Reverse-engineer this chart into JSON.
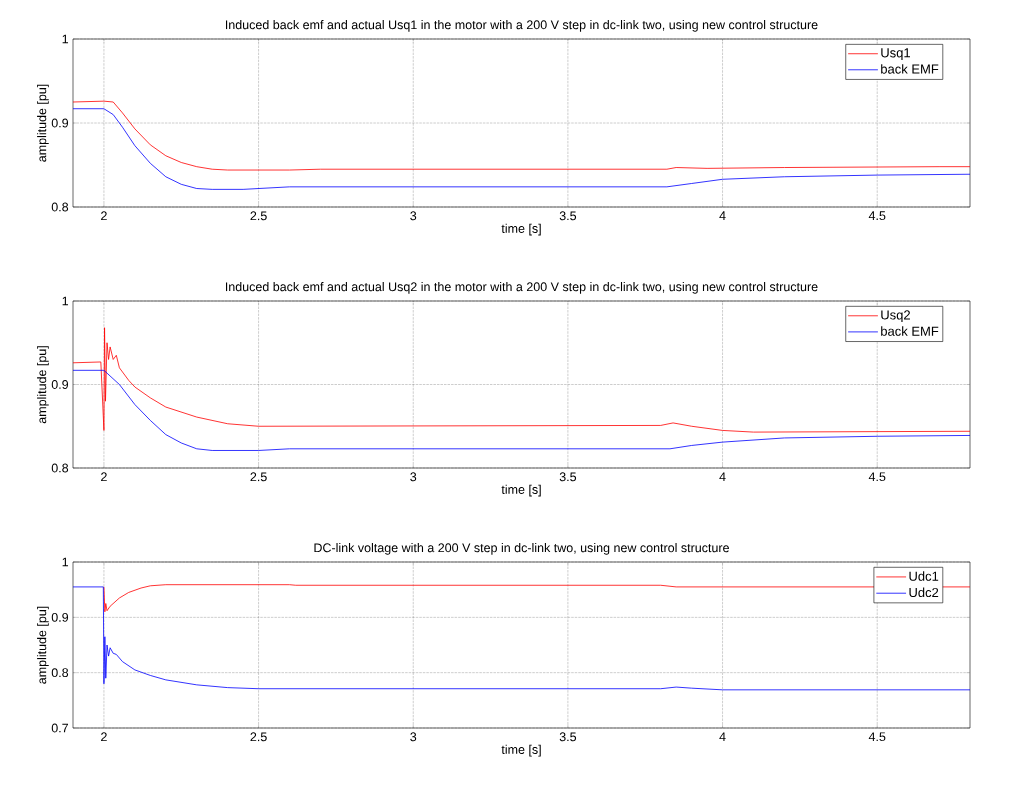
{
  "chart_data": [
    {
      "type": "line",
      "title": "Induced back emf and actual Usq1 in the motor with a 200 V step in dc-link two, using new control structure",
      "xlabel": "time [s]",
      "ylabel": "amplitude [pu]",
      "xlim": [
        1.9,
        4.8
      ],
      "ylim": [
        0.8,
        1
      ],
      "xticks": [
        2,
        2.5,
        3,
        3.5,
        4,
        4.5
      ],
      "yticks": [
        0.8,
        0.9,
        1
      ],
      "grid": true,
      "legend": "top right",
      "series": [
        {
          "name": "Usq1",
          "color": "#ff0000",
          "x": [
            1.9,
            2.0,
            2.03,
            2.06,
            2.1,
            2.15,
            2.2,
            2.25,
            2.3,
            2.35,
            2.4,
            2.6,
            2.7,
            3.82,
            3.85,
            3.95,
            4.2,
            4.7,
            4.8
          ],
          "values": [
            0.925,
            0.926,
            0.925,
            0.912,
            0.893,
            0.874,
            0.861,
            0.853,
            0.848,
            0.845,
            0.844,
            0.844,
            0.845,
            0.845,
            0.847,
            0.846,
            0.847,
            0.848,
            0.848
          ]
        },
        {
          "name": "back EMF",
          "color": "#0000ff",
          "x": [
            1.9,
            2.0,
            2.03,
            2.06,
            2.1,
            2.15,
            2.2,
            2.25,
            2.3,
            2.35,
            2.45,
            2.6,
            3.82,
            3.9,
            4.0,
            4.2,
            4.5,
            4.8
          ],
          "values": [
            0.917,
            0.917,
            0.91,
            0.895,
            0.873,
            0.852,
            0.836,
            0.827,
            0.822,
            0.821,
            0.821,
            0.824,
            0.824,
            0.828,
            0.833,
            0.836,
            0.838,
            0.839
          ]
        }
      ]
    },
    {
      "type": "line",
      "title": "Induced back emf and actual Usq2 in the motor with a 200 V step in dc-link two, using new control structure",
      "xlabel": "time [s]",
      "ylabel": "amplitude [pu]",
      "xlim": [
        1.9,
        4.8
      ],
      "ylim": [
        0.8,
        1
      ],
      "xticks": [
        2,
        2.5,
        3,
        3.5,
        4,
        4.5
      ],
      "yticks": [
        0.8,
        0.9,
        1
      ],
      "grid": true,
      "legend": "top right",
      "series": [
        {
          "name": "Usq2",
          "color": "#ff0000",
          "x": [
            1.9,
            1.99,
            2.0,
            2.002,
            2.005,
            2.01,
            2.015,
            2.02,
            2.03,
            2.04,
            2.05,
            2.08,
            2.1,
            2.15,
            2.2,
            2.3,
            2.4,
            2.5,
            3.8,
            3.84,
            3.9,
            4.0,
            4.1,
            4.8
          ],
          "values": [
            0.926,
            0.927,
            0.845,
            0.968,
            0.88,
            0.95,
            0.93,
            0.945,
            0.93,
            0.935,
            0.92,
            0.905,
            0.897,
            0.884,
            0.873,
            0.861,
            0.853,
            0.85,
            0.851,
            0.854,
            0.85,
            0.845,
            0.843,
            0.844
          ]
        },
        {
          "name": "back EMF",
          "color": "#0000ff",
          "x": [
            1.9,
            2.0,
            2.05,
            2.1,
            2.15,
            2.2,
            2.25,
            2.3,
            2.35,
            2.5,
            2.6,
            3.83,
            3.9,
            4.0,
            4.2,
            4.5,
            4.8
          ],
          "values": [
            0.917,
            0.917,
            0.9,
            0.876,
            0.857,
            0.84,
            0.83,
            0.823,
            0.821,
            0.821,
            0.823,
            0.823,
            0.827,
            0.831,
            0.836,
            0.838,
            0.839
          ]
        }
      ]
    },
    {
      "type": "line",
      "title": "DC-link voltage with a 200 V step in dc-link two, using new control structure",
      "xlabel": "time [s]",
      "ylabel": "amplitude [pu]",
      "xlim": [
        1.9,
        4.8
      ],
      "ylim": [
        0.7,
        1
      ],
      "xticks": [
        2,
        2.5,
        3,
        3.5,
        4,
        4.5
      ],
      "yticks": [
        0.7,
        0.8,
        0.9,
        1
      ],
      "grid": true,
      "legend": "top right",
      "series": [
        {
          "name": "Udc1",
          "color": "#ff0000",
          "x": [
            2.0,
            2.003,
            2.006,
            2.01,
            2.02,
            2.05,
            2.08,
            2.12,
            2.15,
            2.2,
            2.6,
            2.62,
            3.8,
            3.85,
            4.8
          ],
          "values": [
            0.955,
            0.91,
            0.925,
            0.912,
            0.92,
            0.935,
            0.945,
            0.953,
            0.957,
            0.959,
            0.959,
            0.958,
            0.958,
            0.955,
            0.955
          ]
        },
        {
          "name": "Udc2",
          "color": "#0000ff",
          "x": [
            1.9,
            1.998,
            2.0,
            2.003,
            2.006,
            2.01,
            2.015,
            2.02,
            2.03,
            2.04,
            2.06,
            2.1,
            2.15,
            2.2,
            2.3,
            2.4,
            2.5,
            3.8,
            3.85,
            3.9,
            4.0,
            4.8
          ],
          "values": [
            0.955,
            0.955,
            0.78,
            0.865,
            0.79,
            0.85,
            0.83,
            0.845,
            0.835,
            0.833,
            0.82,
            0.805,
            0.795,
            0.787,
            0.778,
            0.773,
            0.771,
            0.771,
            0.774,
            0.772,
            0.769,
            0.769
          ]
        }
      ]
    }
  ]
}
